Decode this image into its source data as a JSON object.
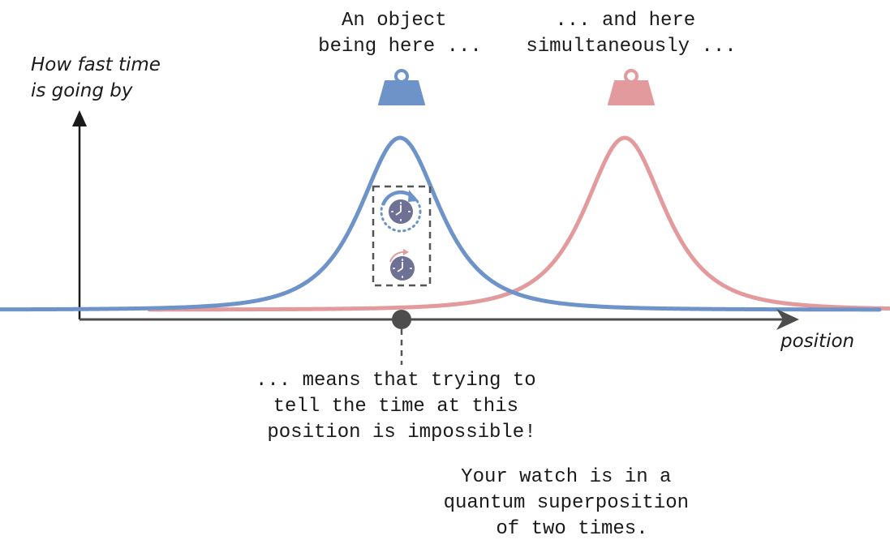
{
  "y_axis_label": [
    "How fast time",
    "is going by"
  ],
  "x_axis_label": "position",
  "caption_left": [
    "An object",
    "being here ..."
  ],
  "caption_right": [
    "... and here",
    "simultaneously ..."
  ],
  "caption_below": [
    "... means that trying to",
    "tell the time at this",
    "position is impossible!"
  ],
  "caption_bottom": [
    "Your watch is in a",
    "quantum superposition",
    "of two times."
  ],
  "colors": {
    "blue": "#6e93c8",
    "red": "#e39a9c",
    "clock": "#6e7094",
    "axis": "#4d4d4d",
    "dashed": "#555555"
  },
  "icons": {
    "weight_left": "weight-icon",
    "weight_right": "weight-icon",
    "clock_fast": "fast-clock-icon",
    "clock_slow": "slow-clock-icon",
    "marker": "position-marker-dot"
  }
}
